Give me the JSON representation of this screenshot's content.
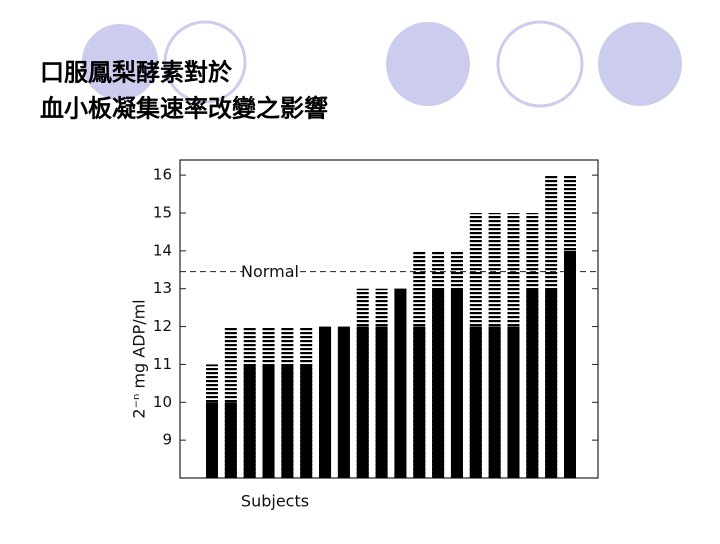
{
  "title_lines": [
    "口服鳳梨酵素對於",
    "血小板凝集速率改變之影響"
  ],
  "chart_data": {
    "type": "bar",
    "y_label": "2⁻ⁿ mg ADP/ml",
    "x_label": "Subjects",
    "categories": [
      null,
      null,
      null,
      null,
      null,
      null,
      null,
      null,
      null,
      null,
      null,
      null,
      null,
      null,
      null,
      null,
      null,
      null,
      null,
      null
    ],
    "series": [
      {
        "color": "#000000",
        "style": "dashed",
        "values": [
          11,
          12,
          12,
          12,
          12,
          12,
          12,
          12,
          13,
          13,
          13,
          14,
          14,
          14,
          15,
          15,
          15,
          15,
          16,
          16
        ]
      },
      {
        "color": "#000000",
        "style": "solid",
        "values": [
          10,
          10,
          11,
          11,
          11,
          11,
          12,
          12,
          12,
          12,
          13,
          12,
          13,
          13,
          12,
          12,
          12,
          13,
          13,
          14
        ]
      }
    ],
    "reference_line": {
      "label": "Normal",
      "value": 13.45
    },
    "ylim": [
      8,
      16.4
    ],
    "yticks": [
      9,
      10,
      11,
      12,
      13,
      14,
      15,
      16
    ],
    "grid": false
  }
}
